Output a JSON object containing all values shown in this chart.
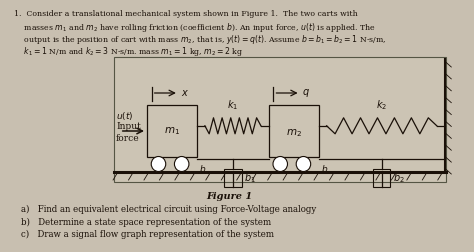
{
  "bg_color": "#c8bfb0",
  "page_color": "#d8d0c0",
  "diagram_bg": "#ccc4b4",
  "text_color": "#1a1008",
  "problem_lines": [
    "1.  Consider a translational mechanical system shown in Figure 1.  The two carts with",
    "    masses $m_1$ and $m_2$ have rolling friction (coefficient $b$). An input force, $u(t)$ is applied. The",
    "    output is the position of cart with mass $m_2$, that is, $y(t)=q(t)$. Assume $b=b_1=b_2=1$ N-s/m,",
    "    $k_1=1$ N/m and $k_2=3$ N-s/m. mass $m_1=1$ kg, $m_2=2$ kg"
  ],
  "figure_label": "Figure 1",
  "questions": [
    "a)   Find an equivalent electrical circuit using Force-Voltage analogy",
    "b)   Determine a state space representation of the system",
    "c)   Draw a signal flow graph representation of the system"
  ],
  "m1_label": "$m_1$",
  "m2_label": "$m_2$",
  "k1_label": "$k_1$",
  "k2_label": "$k_2$",
  "b_label": "$b$",
  "b1_label": "$b_1$",
  "b2_label": "$b_2$",
  "x_label": "$x$",
  "q_label": "$q$",
  "ut_label": "$u(t)$",
  "input_label": "Input",
  "force_label": "force"
}
